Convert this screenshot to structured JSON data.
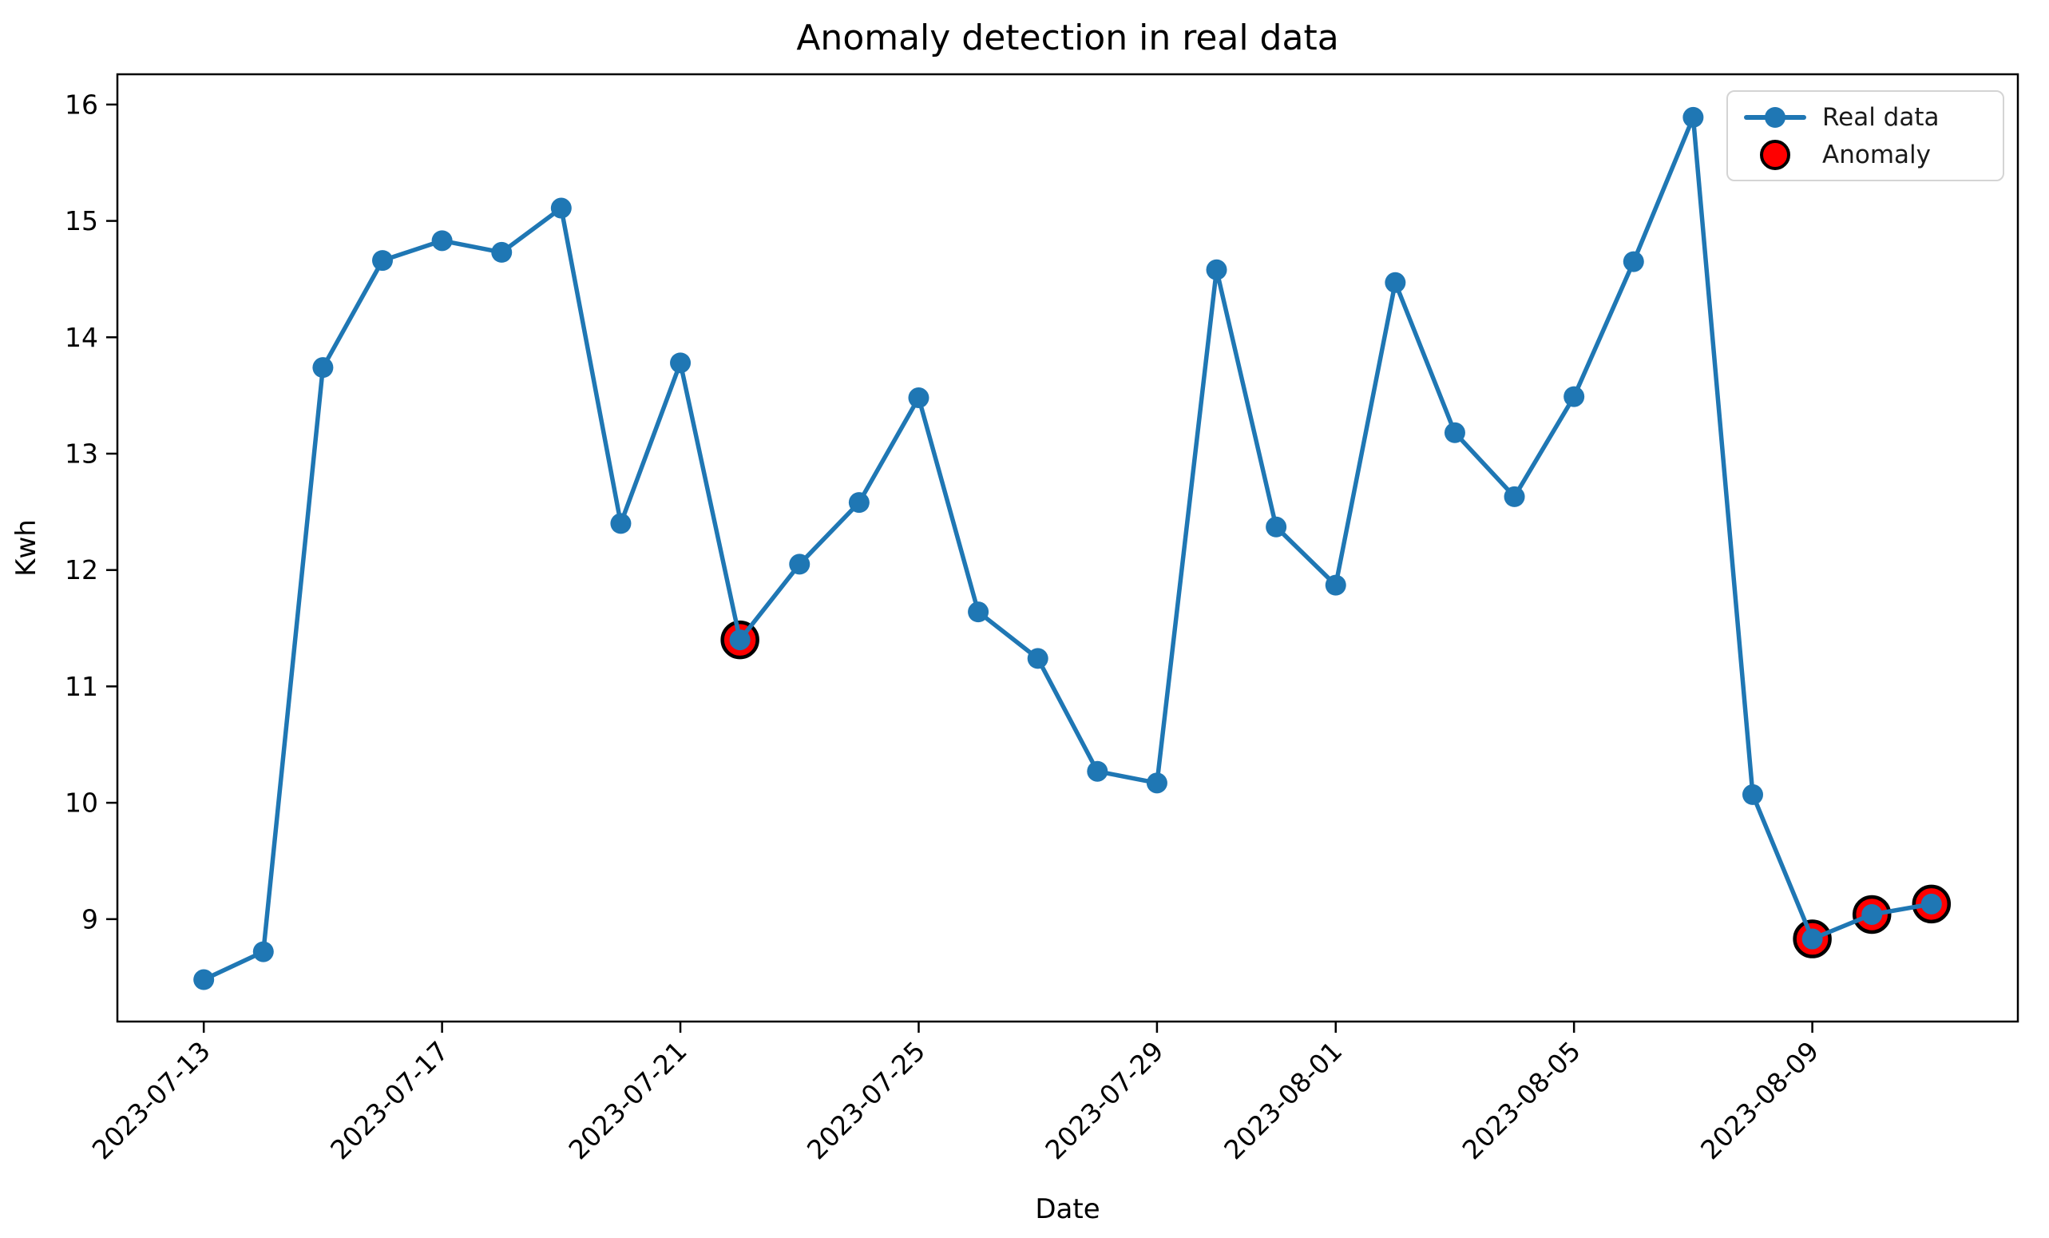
{
  "chart_data": {
    "type": "line",
    "title": "Anomaly detection in real data",
    "xlabel": "Date",
    "ylabel": "Kwh",
    "grid": false,
    "legend_position": "upper right",
    "legend": [
      {
        "label": "Real data"
      },
      {
        "label": "Anomaly"
      }
    ],
    "line_color": "#1f77b4",
    "marker": "o",
    "anomaly_color": "#ff0000",
    "anomaly_edge_color": "#000000",
    "axis_color": "#000000",
    "dates": [
      "2023-07-13",
      "2023-07-14",
      "2023-07-15",
      "2023-07-16",
      "2023-07-17",
      "2023-07-18",
      "2023-07-19",
      "2023-07-20",
      "2023-07-21",
      "2023-07-22",
      "2023-07-23",
      "2023-07-24",
      "2023-07-25",
      "2023-07-26",
      "2023-07-27",
      "2023-07-28",
      "2023-07-29",
      "2023-07-30",
      "2023-07-31",
      "2023-08-01",
      "2023-08-02",
      "2023-08-03",
      "2023-08-04",
      "2023-08-05",
      "2023-08-06",
      "2023-08-07",
      "2023-08-08",
      "2023-08-09",
      "2023-08-10",
      "2023-08-11"
    ],
    "series": [
      {
        "name": "Real data",
        "values": [
          8.48,
          8.72,
          13.74,
          14.66,
          14.83,
          14.73,
          15.11,
          12.4,
          13.78,
          11.4,
          12.05,
          12.58,
          13.48,
          11.64,
          11.24,
          10.27,
          10.17,
          14.58,
          12.37,
          11.87,
          14.47,
          13.18,
          12.63,
          13.49,
          14.65,
          15.89,
          10.07,
          8.83,
          9.04,
          9.13
        ]
      }
    ],
    "anomalies": [
      {
        "date": "2023-07-22",
        "value": 11.4
      },
      {
        "date": "2023-08-09",
        "value": 8.83
      },
      {
        "date": "2023-08-10",
        "value": 9.04
      },
      {
        "date": "2023-08-11",
        "value": 9.13
      }
    ],
    "x_ticks": [
      {
        "day_offset": 0,
        "label": "2023-07-13"
      },
      {
        "day_offset": 4,
        "label": "2023-07-17"
      },
      {
        "day_offset": 8,
        "label": "2023-07-21"
      },
      {
        "day_offset": 12,
        "label": "2023-07-25"
      },
      {
        "day_offset": 16,
        "label": "2023-07-29"
      },
      {
        "day_offset": 19,
        "label": "2023-08-01"
      },
      {
        "day_offset": 23,
        "label": "2023-08-05"
      },
      {
        "day_offset": 27,
        "label": "2023-08-09"
      }
    ],
    "y_ticks": [
      9,
      10,
      11,
      12,
      13,
      14,
      15,
      16
    ],
    "ylim": [
      8.12,
      16.26
    ],
    "xlim_days": [
      -1.45,
      30.45
    ]
  }
}
